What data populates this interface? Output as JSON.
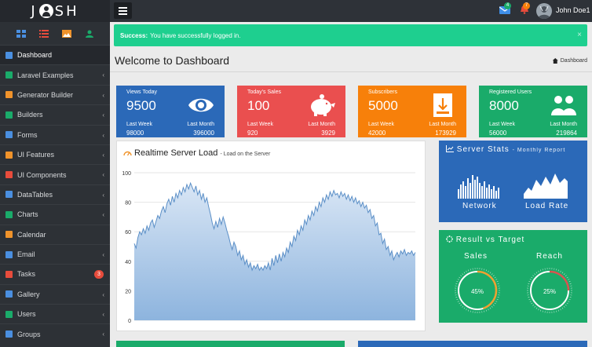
{
  "app": {
    "logo_left": "J",
    "logo_right": "SH"
  },
  "header": {
    "username": "John Doe1",
    "messages_count": "4",
    "notifications_count": "7"
  },
  "sidebar": {
    "items": [
      {
        "label": "Dashboard",
        "icon": "home-icon",
        "color": "#4a8fe0",
        "active": true
      },
      {
        "label": "Laravel Examples",
        "icon": "laravel-icon",
        "color": "#1aab6a"
      },
      {
        "label": "Generator Builder",
        "icon": "shield-icon",
        "color": "#f0932b"
      },
      {
        "label": "Builders",
        "icon": "wrench-icon",
        "color": "#1aab6a"
      },
      {
        "label": "Forms",
        "icon": "forms-icon",
        "color": "#4a8fe0"
      },
      {
        "label": "UI Features",
        "icon": "brush-icon",
        "color": "#f0932b"
      },
      {
        "label": "UI Components",
        "icon": "flask-icon",
        "color": "#e74c3c"
      },
      {
        "label": "DataTables",
        "icon": "table-icon",
        "color": "#4a8fe0"
      },
      {
        "label": "Charts",
        "icon": "bar-chart-icon",
        "color": "#1aab6a"
      },
      {
        "label": "Calendar",
        "icon": "calendar-icon",
        "color": "#f0932b"
      },
      {
        "label": "Email",
        "icon": "mail-icon",
        "color": "#4a8fe0"
      },
      {
        "label": "Tasks",
        "icon": "tasks-icon",
        "color": "#e74c3c",
        "count": "3"
      },
      {
        "label": "Gallery",
        "icon": "gallery-icon",
        "color": "#4a8fe0"
      },
      {
        "label": "Users",
        "icon": "user-icon",
        "color": "#1aab6a"
      },
      {
        "label": "Groups",
        "icon": "groups-icon",
        "color": "#4a8fe0"
      }
    ]
  },
  "alert": {
    "strong": "Success:",
    "text": "You have successfully logged in."
  },
  "page": {
    "title": "Welcome to Dashboard",
    "breadcrumb": "Dashboard"
  },
  "tiles": [
    {
      "title": "Views Today",
      "value": "9500",
      "sub_label": "Last Week",
      "sub_value": "98000",
      "month_label": "Last Month",
      "month_value": "396000",
      "color": "#2b69b8",
      "icon": "eye-icon"
    },
    {
      "title": "Today's Sales",
      "value": "100",
      "sub_label": "Last Week",
      "sub_value": "920",
      "month_label": "Last Month",
      "month_value": "3929",
      "color": "#ea4f4f",
      "icon": "piggy-bank-icon"
    },
    {
      "title": "Subscribers",
      "value": "5000",
      "sub_label": "Last Week",
      "sub_value": "42000",
      "month_label": "Last Month",
      "month_value": "173929",
      "color": "#f7800a",
      "icon": "archive-icon"
    },
    {
      "title": "Registered Users",
      "value": "8000",
      "sub_label": "Last Week",
      "sub_value": "56000",
      "month_label": "Last Month",
      "month_value": "219864",
      "color": "#1aab6a",
      "icon": "users-icon"
    }
  ],
  "server_load": {
    "title": "Realtime Server Load",
    "subtitle": "- Load on the Server"
  },
  "chart_data": {
    "type": "area",
    "title": "Realtime Server Load",
    "ylim": [
      0,
      100
    ],
    "yticks": [
      "0",
      "20",
      "40",
      "60",
      "80",
      "100"
    ],
    "grid": true,
    "values": [
      52,
      49,
      56,
      60,
      58,
      62,
      59,
      64,
      61,
      66,
      68,
      63,
      67,
      71,
      69,
      74,
      77,
      73,
      79,
      82,
      78,
      84,
      80,
      86,
      83,
      88,
      85,
      90,
      87,
      92,
      89,
      93,
      90,
      87,
      91,
      85,
      88,
      82,
      86,
      80,
      83,
      77,
      72,
      66,
      62,
      67,
      63,
      69,
      65,
      70,
      66,
      61,
      57,
      52,
      48,
      53,
      50,
      44,
      47,
      41,
      44,
      38,
      41,
      36,
      39,
      34,
      37,
      35,
      38,
      34,
      36,
      34,
      37,
      35,
      39,
      34,
      42,
      37,
      44,
      39,
      45,
      40,
      46,
      43,
      49,
      46,
      53,
      50,
      57,
      54,
      61,
      58,
      64,
      61,
      68,
      65,
      71,
      68,
      74,
      71,
      77,
      74,
      80,
      77,
      83,
      80,
      85,
      82,
      87,
      84,
      88,
      85,
      86,
      83,
      87,
      84,
      86,
      82,
      85,
      81,
      84,
      80,
      83,
      79,
      81,
      77,
      80,
      76,
      78,
      73,
      75,
      69,
      71,
      64,
      66,
      58,
      59,
      52,
      55,
      48,
      50,
      44,
      47,
      41,
      44,
      46,
      43,
      47,
      45,
      48,
      44,
      46,
      45,
      47,
      44,
      46
    ]
  },
  "server_stats": {
    "title": "Server Stats",
    "subtitle": "- Monthly Report",
    "network_label": "Network",
    "load_label": "Load Rate"
  },
  "result": {
    "title": "Result vs Target",
    "sales_label": "Sales",
    "reach_label": "Reach",
    "sales_value": "45%",
    "reach_value": "25%",
    "sales_percent": 45,
    "reach_percent": 25
  }
}
